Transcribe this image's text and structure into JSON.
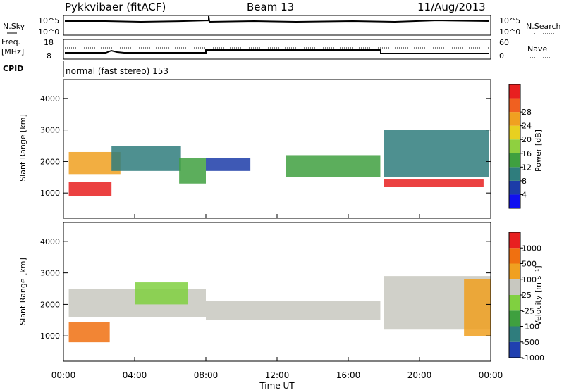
{
  "header": {
    "station": "Pykkvibaer (fitACF)",
    "beam": "Beam 13",
    "date": "11/Aug/2013"
  },
  "noise_panel": {
    "left_label": "N.Sky",
    "right_label": "N.Search",
    "left_ticks": [
      "10^5",
      "10^0"
    ],
    "right_ticks": [
      "10^5",
      "10^0"
    ]
  },
  "freq_panel": {
    "left_label_1": "Freq.",
    "left_label_2": "[MHz]",
    "right_label": "Nave",
    "left_ticks": [
      "18",
      "8"
    ],
    "right_ticks": [
      "60",
      "0"
    ]
  },
  "cpid_panel": {
    "label": "CPID",
    "text": "normal (fast stereo) 153"
  },
  "axes": {
    "ylabel": "Slant Range [km]",
    "xlabel": "Time UT",
    "yticks": [
      "1000",
      "2000",
      "3000",
      "4000"
    ],
    "xticks": [
      "00:00",
      "04:00",
      "08:00",
      "12:00",
      "16:00",
      "20:00",
      "00:00"
    ]
  },
  "colorbars": {
    "power": {
      "label": "Power [dB]",
      "ticks": [
        "4",
        "8",
        "12",
        "16",
        "20",
        "24",
        "28"
      ],
      "colors": [
        "#1010f0",
        "#1c3ca8",
        "#2f7d7d",
        "#3fa03f",
        "#8fd040",
        "#e8d020",
        "#f0a020",
        "#f06020",
        "#e82020"
      ]
    },
    "velocity": {
      "label": "Velocity [m s⁻¹]",
      "ticks": [
        "1000",
        "500",
        "100",
        "25",
        "-25",
        "-100",
        "-500",
        "-1000"
      ],
      "colors": [
        "#2040b0",
        "#2f7d7d",
        "#3fa03f",
        "#80d040",
        "#c8c8c0",
        "#f0a020",
        "#f07010",
        "#e82020"
      ]
    }
  },
  "chart_data": {
    "type": "heatmap",
    "time_range_hours": [
      0,
      24
    ],
    "range_km": [
      200,
      4600
    ],
    "power_regions": [
      {
        "t0": 0.3,
        "t1": 2.7,
        "r0": 900,
        "r1": 1350,
        "color": "#e82020"
      },
      {
        "t0": 0.3,
        "t1": 3.2,
        "r0": 1600,
        "r1": 2300,
        "color": "#f0a020"
      },
      {
        "t0": 2.7,
        "t1": 6.6,
        "r0": 1700,
        "r1": 2500,
        "color": "#2f7d7d"
      },
      {
        "t0": 6.5,
        "t1": 8.0,
        "r0": 1300,
        "r1": 2100,
        "color": "#3fa03f"
      },
      {
        "t0": 8.0,
        "t1": 10.5,
        "r0": 1700,
        "r1": 2100,
        "color": "#1c3ca8"
      },
      {
        "t0": 12.5,
        "t1": 17.8,
        "r0": 1500,
        "r1": 2200,
        "color": "#3fa03f"
      },
      {
        "t0": 18.0,
        "t1": 23.6,
        "r0": 1200,
        "r1": 1450,
        "color": "#e82020"
      },
      {
        "t0": 18.0,
        "t1": 23.9,
        "r0": 1500,
        "r1": 3000,
        "color": "#2f7d7d"
      }
    ],
    "velocity_regions": [
      {
        "t0": 0.3,
        "t1": 2.6,
        "r0": 800,
        "r1": 1450,
        "color": "#f07010"
      },
      {
        "t0": 0.3,
        "t1": 8.0,
        "r0": 1600,
        "r1": 2500,
        "color": "#c8c8c0"
      },
      {
        "t0": 4.0,
        "t1": 7.0,
        "r0": 2000,
        "r1": 2700,
        "color": "#80d040"
      },
      {
        "t0": 8.0,
        "t1": 17.8,
        "r0": 1500,
        "r1": 2100,
        "color": "#c8c8c0"
      },
      {
        "t0": 18.0,
        "t1": 24.0,
        "r0": 1200,
        "r1": 2900,
        "color": "#c8c8c0"
      },
      {
        "t0": 22.5,
        "t1": 24.0,
        "r0": 1000,
        "r1": 2800,
        "color": "#f0a020"
      }
    ]
  }
}
